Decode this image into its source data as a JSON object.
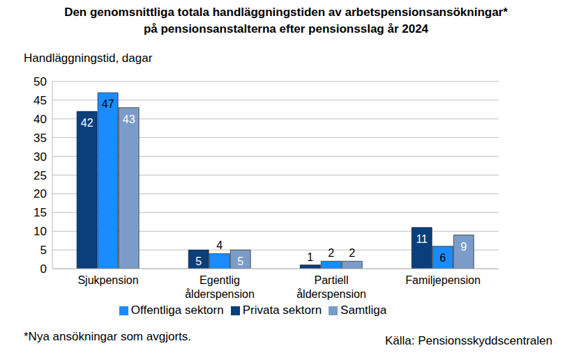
{
  "chart_data": {
    "type": "bar",
    "title": "Den genomsnittliga totala handläggningstiden av arbetspensionsansökningar*\npå pensionsanstalterna efter pensionsslag år 2024",
    "y_label": "Handläggningstid, dagar",
    "categories": [
      "Sjukpension",
      "Egentlig ålderspension",
      "Partiell ålderspension",
      "Familjepension"
    ],
    "series": [
      {
        "name": "Privata sektorn",
        "color": "#0b3f7c",
        "values": [
          42,
          5,
          1,
          11
        ]
      },
      {
        "name": "Offentliga sektorn",
        "color": "#1a8cff",
        "values": [
          47,
          4,
          2,
          6
        ]
      },
      {
        "name": "Samtliga",
        "color": "#7b9cc8",
        "values": [
          43,
          5,
          2,
          9
        ]
      }
    ],
    "ylim": [
      0,
      50
    ],
    "yticks": [
      0,
      5,
      10,
      15,
      20,
      25,
      30,
      35,
      40,
      45,
      50
    ],
    "grid": true,
    "legend": "bottom",
    "data_labels": true,
    "annotations": [
      "*Nya ansökningar som avgjorts.",
      "Källa: Pensionsskyddscentralen"
    ]
  }
}
